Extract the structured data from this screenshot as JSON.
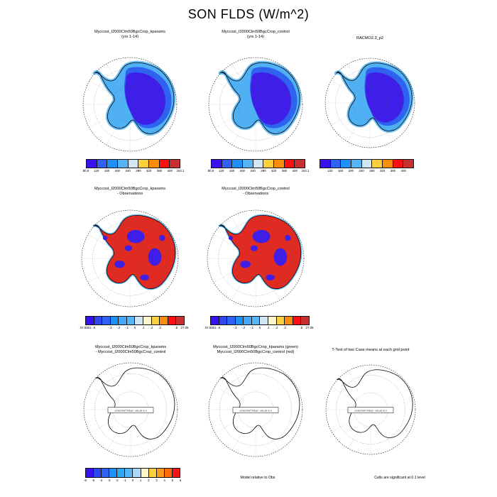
{
  "page_title": "SON FLDS (W/m^2)",
  "map_direction_labels": [
    {
      "label": "0",
      "angle": 0
    },
    {
      "label": "30E",
      "angle": 30
    },
    {
      "label": "60E",
      "angle": 60
    },
    {
      "label": "90E",
      "angle": 90
    },
    {
      "label": "120E",
      "angle": 120
    },
    {
      "label": "150E",
      "angle": 150
    },
    {
      "label": "180",
      "angle": 180
    },
    {
      "label": "150W",
      "angle": 210
    },
    {
      "label": "120W",
      "angle": 240
    },
    {
      "label": "90W",
      "angle": 270
    },
    {
      "label": "60W",
      "angle": 300
    },
    {
      "label": "30W",
      "angle": 330
    }
  ],
  "map_colors": {
    "seaice_fringe": "#6cc0f6",
    "land_low": "#4fb0f4",
    "land_mid": "#2e62f0",
    "land_high": "#3f1fe8",
    "diff_positive": "#df2b22",
    "diff_negative": "#3f1fe8",
    "coastline": "#000000",
    "ocean": "#ffffff"
  },
  "rows": [
    {
      "name": "case-climatologies",
      "panels": [
        {
          "title_lines": [
            "Myccost_I2000Clm50BgcCrop_kparams",
            "(yrs 1-14)"
          ],
          "map_style": "model",
          "colorbar": "case_levels"
        },
        {
          "title_lines": [
            "Myccost_I2000Clm50BgcCrop_control",
            "(yrs 1-14)"
          ],
          "map_style": "model",
          "colorbar": "case_levels"
        },
        {
          "title_lines": [
            "RACMO2.3_p2"
          ],
          "map_style": "model",
          "colorbar": "obs_levels"
        }
      ]
    },
    {
      "name": "model-minus-observations",
      "panels": [
        {
          "title_lines": [
            "Myccost_I2000Clm50BgcCrop_kparams",
            "- Observations"
          ],
          "map_style": "diff",
          "colorbar": "diff_levels"
        },
        {
          "title_lines": [
            "Myccost_I2000Clm50BgcCrop_control",
            "- Observations"
          ],
          "map_style": "diff",
          "colorbar": "diff_levels"
        }
      ]
    },
    {
      "name": "case-differences-and-ttest",
      "panels": [
        {
          "title_lines": [
            "Myccost_I2000Clm50BgcCrop_kparams",
            "- Myccost_I2000Clm50BgcCrop_control"
          ],
          "map_style": "outline",
          "map_box_label": "CONSTANT FIELD - VALUE IS 0",
          "colorbar": "case_diff_levels"
        },
        {
          "title_lines": [
            "Myccost_I2000Clm50BgcCrop_kparams (green)",
            "Myccost_I2000Clm50BgcCrop_control (red)"
          ],
          "map_style": "outline",
          "map_box_label": "CONSTANT FIELD - VALUE IS 0",
          "footnote": "Model relative to Obs"
        },
        {
          "title_lines": [
            "T-Test of two Case means at each grid point"
          ],
          "map_style": "outline",
          "map_box_label": "CONSTANT FIELD - VALUE IS 0",
          "footnote": "Cells are significant at 0.1 level"
        }
      ]
    }
  ],
  "colorbars": {
    "case_levels": {
      "colors": [
        "#3a0ff0",
        "#2f62f2",
        "#1e90f8",
        "#55b5f6",
        "#d2e6f6",
        "#fccf3e",
        "#fc8d0a",
        "#fa1010",
        "#c63030"
      ],
      "ticks": [
        {
          "label": "80.9",
          "edge": 0
        },
        {
          "label": "120",
          "edge": 1
        },
        {
          "label": "160",
          "edge": 2
        },
        {
          "label": "200",
          "edge": 3
        },
        {
          "label": "240",
          "edge": 4
        },
        {
          "label": "280",
          "edge": 5
        },
        {
          "label": "320",
          "edge": 6
        },
        {
          "label": "360",
          "edge": 7
        },
        {
          "label": "400",
          "edge": 8
        },
        {
          "label": "424.1",
          "edge": 9
        }
      ]
    },
    "obs_levels": {
      "colors": [
        "#3a0ff0",
        "#2f62f2",
        "#1e90f8",
        "#55b5f6",
        "#d2e6f6",
        "#fccf3e",
        "#fc8d0a",
        "#fa1010",
        "#c63030"
      ],
      "ticks": [
        {
          "label": "120",
          "edge": 1
        },
        {
          "label": "160",
          "edge": 2
        },
        {
          "label": "200",
          "edge": 3
        },
        {
          "label": "240",
          "edge": 4
        },
        {
          "label": "280",
          "edge": 5
        },
        {
          "label": "320",
          "edge": 6
        },
        {
          "label": "360",
          "edge": 7
        },
        {
          "label": "400",
          "edge": 8
        }
      ]
    },
    "diff_levels": {
      "colors": [
        "#3a0ff0",
        "#2f47f0",
        "#2f62f2",
        "#1e90f8",
        "#44a8f8",
        "#55b5f6",
        "#d2e6f6",
        "#fdf6c8",
        "#fccf3e",
        "#fc8d0a",
        "#fa1010",
        "#c63030"
      ],
      "ticks": [
        {
          "label": "-37.5501",
          "edge": 0
        },
        {
          "label": "-.5",
          "edge": 1
        },
        {
          "label": "-.3",
          "edge": 3
        },
        {
          "label": "-.2",
          "edge": 4
        },
        {
          "label": "-.1",
          "edge": 5
        },
        {
          "label": "0",
          "edge": 6
        },
        {
          "label": ".1",
          "edge": 7
        },
        {
          "label": ".2",
          "edge": 8
        },
        {
          "label": ".3",
          "edge": 9
        },
        {
          "label": ".5",
          "edge": 11
        },
        {
          "label": "27.05",
          "edge": 12
        }
      ]
    },
    "case_diff_levels": {
      "colors": [
        "#3a0ff0",
        "#2f47f0",
        "#2f62f2",
        "#1e90f8",
        "#2fa8f0",
        "#55b5f6",
        "#a9d7f8",
        "#fdf6c8",
        "#fccf3e",
        "#fc9a1e",
        "#fc6a0a",
        "#f01414"
      ],
      "ticks": [
        {
          "label": "-6",
          "edge": 0
        },
        {
          "label": "-5",
          "edge": 1
        },
        {
          "label": "-4",
          "edge": 2
        },
        {
          "label": "-3",
          "edge": 3
        },
        {
          "label": "-2",
          "edge": 4
        },
        {
          "label": "-1",
          "edge": 5
        },
        {
          "label": "0",
          "edge": 6
        },
        {
          "label": "1",
          "edge": 7
        },
        {
          "label": "2",
          "edge": 8
        },
        {
          "label": "3",
          "edge": 9
        },
        {
          "label": "4",
          "edge": 10
        },
        {
          "label": "5",
          "edge": 11
        },
        {
          "label": "6",
          "edge": 12
        }
      ]
    }
  },
  "annotations": {
    "model_relative": "Model relative to Obs",
    "significance": "Cells are significant at 0.1 level"
  }
}
